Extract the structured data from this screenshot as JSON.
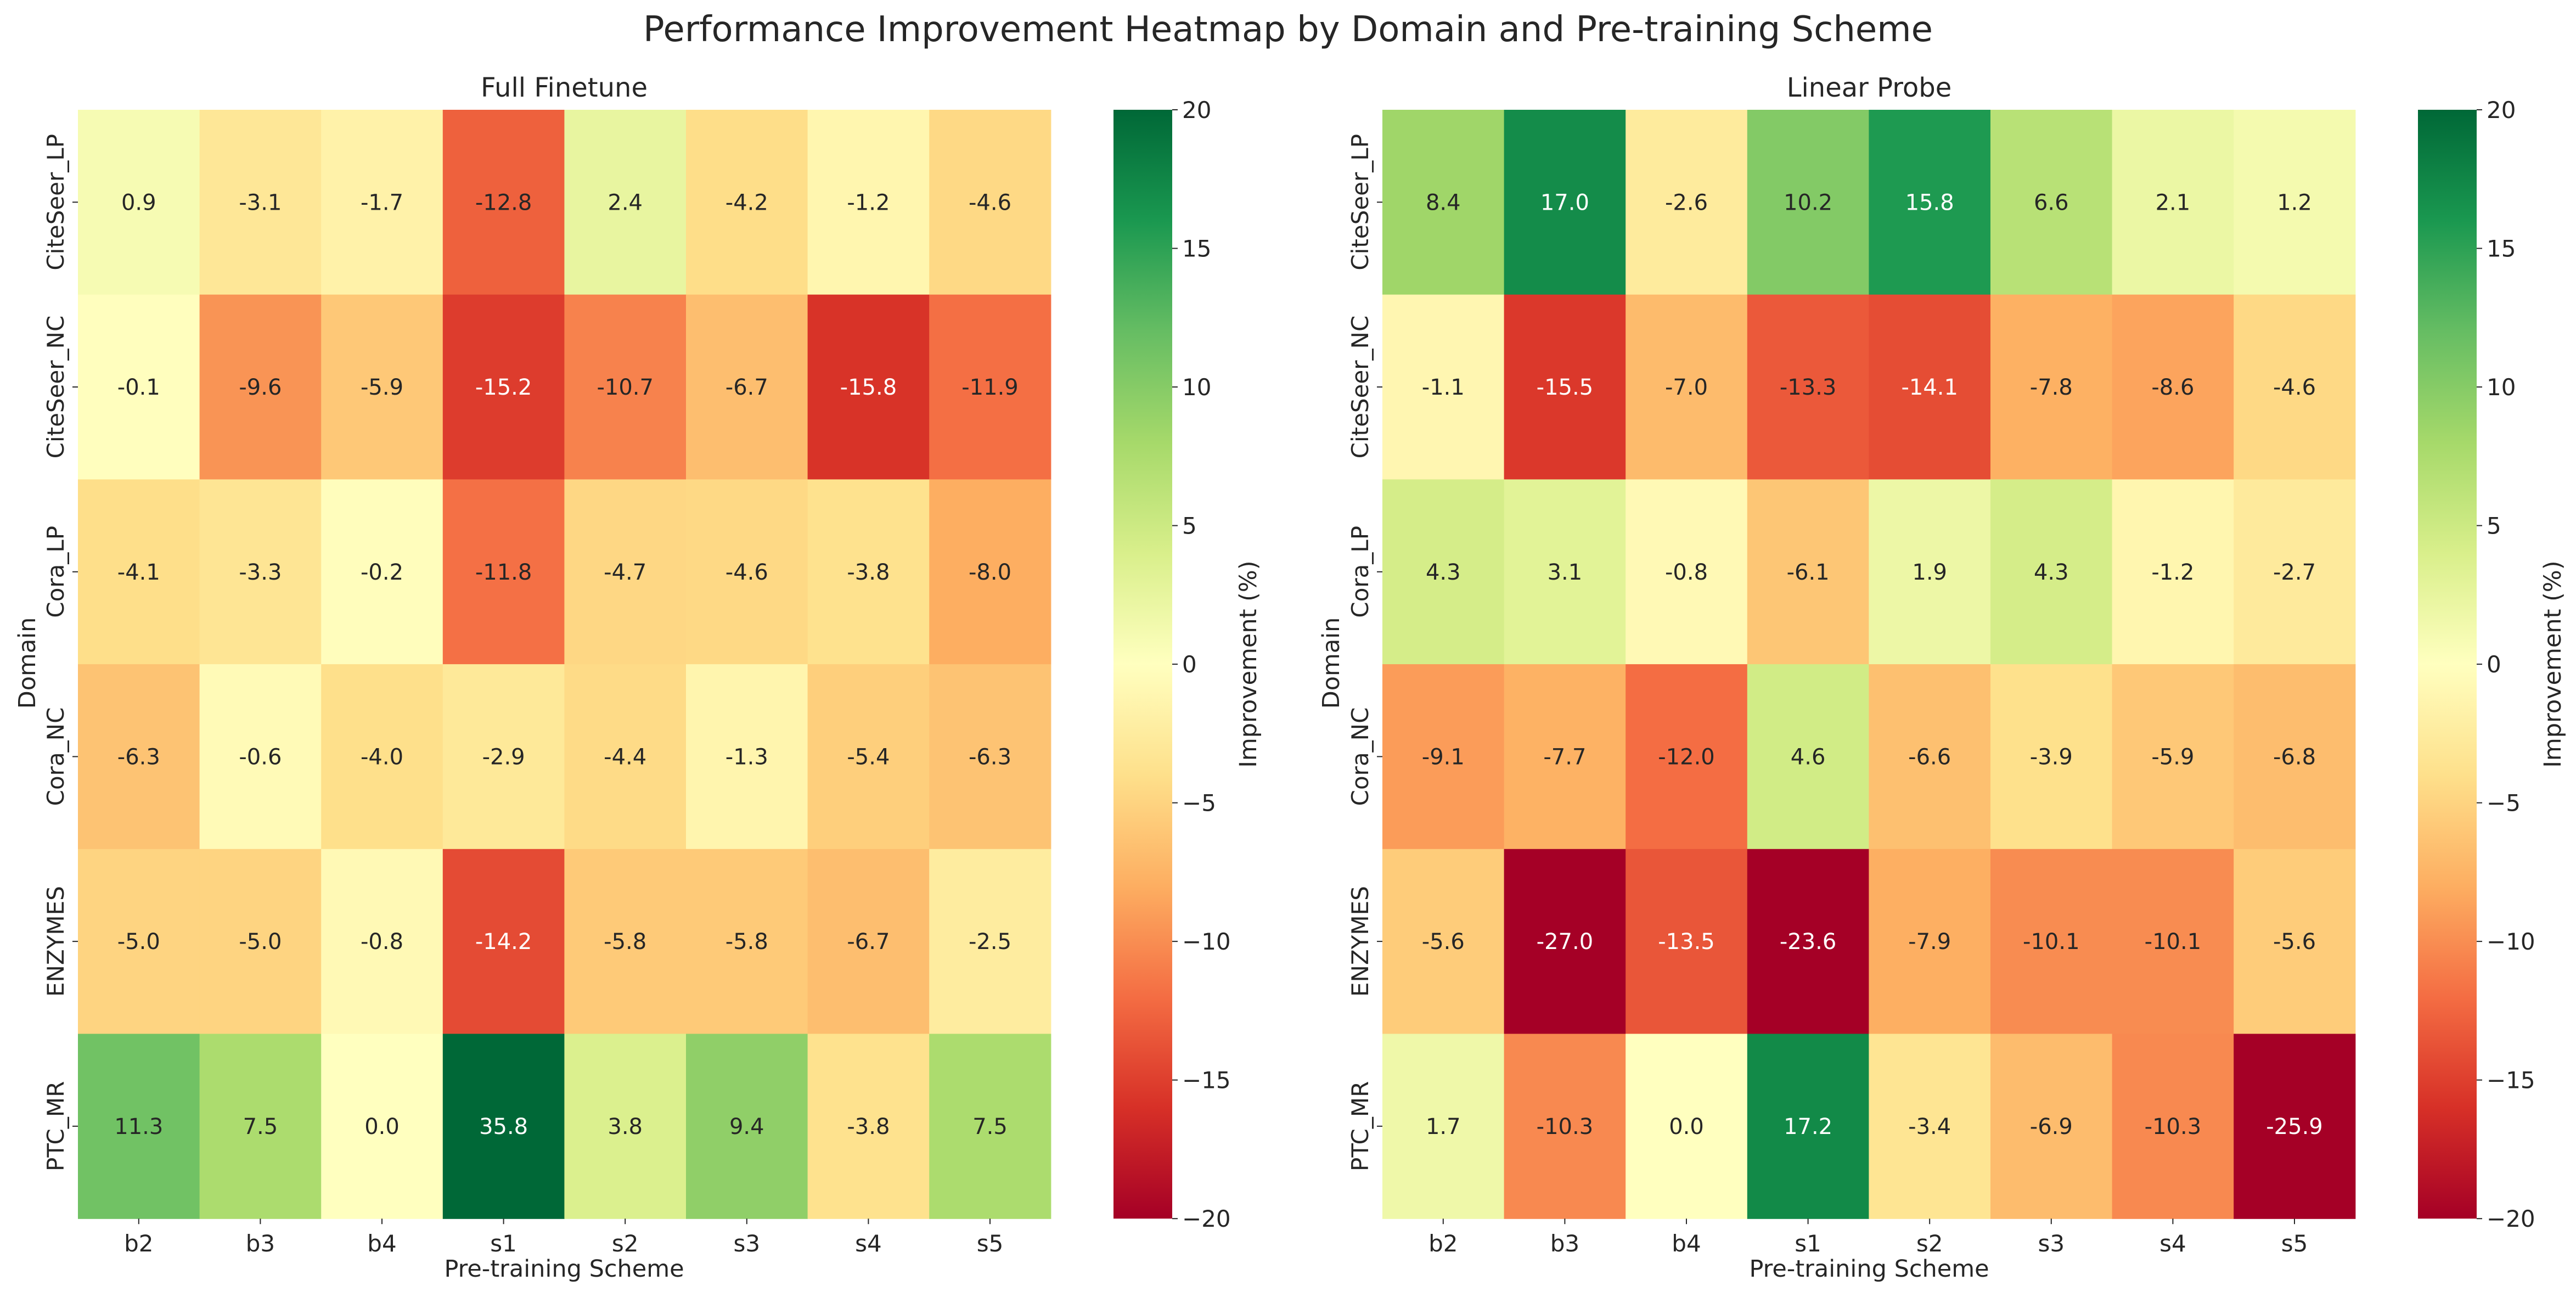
{
  "suptitle": "Performance Improvement Heatmap by Domain and Pre-training Scheme",
  "colormap": {
    "name": "RdYlGn",
    "range": [
      -20,
      20
    ],
    "stops": [
      "#a50026",
      "#d73027",
      "#f46d43",
      "#fdae61",
      "#fee08b",
      "#ffffbf",
      "#d9ef8b",
      "#a6d96a",
      "#66bd63",
      "#1a9850",
      "#006837"
    ]
  },
  "colorbar": {
    "label": "Improvement (%)",
    "ticks": [
      20,
      15,
      10,
      5,
      0,
      -5,
      -10,
      -15,
      -20
    ],
    "tick_labels": [
      "20",
      "15",
      "10",
      "5",
      "0",
      "−5",
      "−10",
      "−15",
      "−20"
    ]
  },
  "chart_data": [
    {
      "type": "heatmap",
      "title": "Full Finetune",
      "xlabel": "Pre-training Scheme",
      "ylabel": "Domain",
      "x_categories": [
        "b2",
        "b3",
        "b4",
        "s1",
        "s2",
        "s3",
        "s4",
        "s5"
      ],
      "y_categories": [
        "CiteSeer_LP",
        "CiteSeer_NC",
        "Cora_LP",
        "Cora_NC",
        "ENZYMES",
        "PTC_MR"
      ],
      "vmin": -20,
      "vmax": 20,
      "values": [
        [
          0.9,
          -3.1,
          -1.7,
          -12.8,
          2.4,
          -4.2,
          -1.2,
          -4.6
        ],
        [
          -0.1,
          -9.6,
          -5.9,
          -15.2,
          -10.7,
          -6.7,
          -15.8,
          -11.9
        ],
        [
          -4.1,
          -3.3,
          -0.2,
          -11.8,
          -4.7,
          -4.6,
          -3.8,
          -8.0
        ],
        [
          -6.3,
          -0.6,
          -4.0,
          -2.9,
          -4.4,
          -1.3,
          -5.4,
          -6.3
        ],
        [
          -5.0,
          -5.0,
          -0.8,
          -14.2,
          -5.8,
          -5.8,
          -6.7,
          -2.5
        ],
        [
          11.3,
          7.5,
          0.0,
          35.8,
          3.8,
          9.4,
          -3.8,
          7.5
        ]
      ]
    },
    {
      "type": "heatmap",
      "title": "Linear Probe",
      "xlabel": "Pre-training Scheme",
      "ylabel": "Domain",
      "x_categories": [
        "b2",
        "b3",
        "b4",
        "s1",
        "s2",
        "s3",
        "s4",
        "s5"
      ],
      "y_categories": [
        "CiteSeer_LP",
        "CiteSeer_NC",
        "Cora_LP",
        "Cora_NC",
        "ENZYMES",
        "PTC_MR"
      ],
      "vmin": -20,
      "vmax": 20,
      "values": [
        [
          8.4,
          17.0,
          -2.6,
          10.2,
          15.8,
          6.6,
          2.1,
          1.2
        ],
        [
          -1.1,
          -15.5,
          -7.0,
          -13.3,
          -14.1,
          -7.8,
          -8.6,
          -4.6
        ],
        [
          4.3,
          3.1,
          -0.8,
          -6.1,
          1.9,
          4.3,
          -1.2,
          -2.7
        ],
        [
          -9.1,
          -7.7,
          -12.0,
          4.6,
          -6.6,
          -3.9,
          -5.9,
          -6.8
        ],
        [
          -5.6,
          -27.0,
          -13.5,
          -23.6,
          -7.9,
          -10.1,
          -10.1,
          -5.6
        ],
        [
          1.7,
          -10.3,
          0.0,
          17.2,
          -3.4,
          -6.9,
          -10.3,
          -25.9
        ]
      ]
    }
  ]
}
